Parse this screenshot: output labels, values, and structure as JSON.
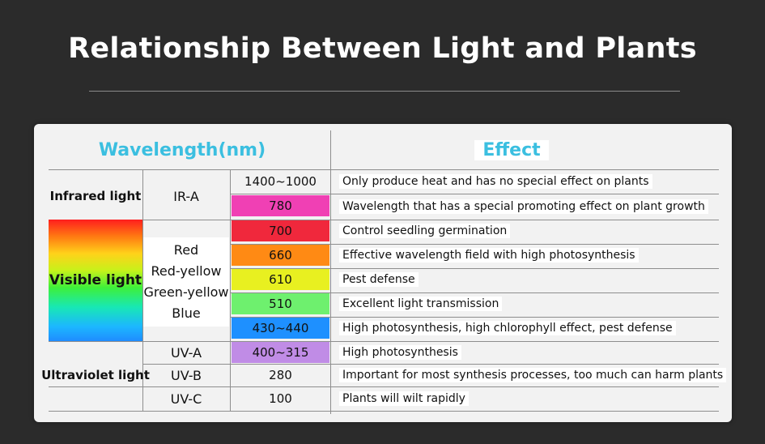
{
  "title": "Relationship Between Light and Plants",
  "headers": {
    "wavelength": "Wavelength(nm)",
    "effect": "Effect"
  },
  "categories": {
    "infrared": "Infrared light",
    "visible": "Visible light",
    "ultraviolet": "Ultraviolet light"
  },
  "subtypes": {
    "ir_a": "IR-A",
    "visible": [
      "Red",
      "Red-yellow",
      "Green-yellow",
      "Blue"
    ],
    "uv_a": "UV-A",
    "uv_b": "UV-B",
    "uv_c": "UV-C"
  },
  "rows": [
    {
      "wavelength": "1400~1000",
      "color": "#f2f2f2",
      "effect": "Only produce heat and has no special effect on plants"
    },
    {
      "wavelength": "780",
      "color": "#f040b4",
      "effect": "Wavelength that has a special promoting effect on plant growth"
    },
    {
      "wavelength": "700",
      "color": "#f0283c",
      "effect": "Control seedling germination"
    },
    {
      "wavelength": "660",
      "color": "#ff8a14",
      "effect": "Effective wavelength field with high photosynthesis"
    },
    {
      "wavelength": "610",
      "color": "#e8f020",
      "effect": "Pest defense"
    },
    {
      "wavelength": "510",
      "color": "#6ef06e",
      "effect": "Excellent light transmission"
    },
    {
      "wavelength": "430~440",
      "color": "#1e90ff",
      "effect": "High photosynthesis, high chlorophyll effect, pest defense"
    },
    {
      "wavelength": "400~315",
      "color": "#c08ce6",
      "effect": "High photosynthesis"
    },
    {
      "wavelength": "280",
      "color": "#f2f2f2",
      "effect": "Important for most synthesis processes, too much can harm plants"
    },
    {
      "wavelength": "100",
      "color": "#f2f2f2",
      "effect": "Plants will wilt rapidly"
    }
  ]
}
